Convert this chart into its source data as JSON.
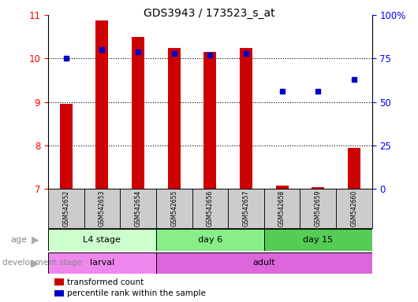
{
  "title": "GDS3943 / 173523_s_at",
  "samples": [
    "GSM542652",
    "GSM542653",
    "GSM542654",
    "GSM542655",
    "GSM542656",
    "GSM542657",
    "GSM542658",
    "GSM542659",
    "GSM542660"
  ],
  "transformed_count": [
    8.95,
    10.88,
    10.5,
    10.25,
    10.15,
    10.25,
    7.07,
    7.03,
    7.95
  ],
  "percentile_rank": [
    75,
    80,
    79,
    78,
    77,
    78,
    56,
    56,
    63
  ],
  "ylim_left": [
    7,
    11
  ],
  "ylim_right": [
    0,
    100
  ],
  "yticks_left": [
    7,
    8,
    9,
    10,
    11
  ],
  "yticks_right": [
    0,
    25,
    50,
    75,
    100
  ],
  "ytick_right_labels": [
    "0",
    "25",
    "50",
    "75",
    "100%"
  ],
  "bar_color": "#cc0000",
  "dot_color": "#0000cc",
  "bar_bottom": 7,
  "age_groups": [
    {
      "label": "L4 stage",
      "start": 0,
      "end": 3,
      "color": "#ccffcc"
    },
    {
      "label": "day 6",
      "start": 3,
      "end": 6,
      "color": "#88ee88"
    },
    {
      "label": "day 15",
      "start": 6,
      "end": 9,
      "color": "#55cc55"
    }
  ],
  "dev_groups": [
    {
      "label": "larval",
      "start": 0,
      "end": 3,
      "color": "#ee88ee"
    },
    {
      "label": "adult",
      "start": 3,
      "end": 9,
      "color": "#dd66dd"
    }
  ],
  "legend_items": [
    {
      "color": "#cc0000",
      "label": "transformed count"
    },
    {
      "color": "#0000cc",
      "label": "percentile rank within the sample"
    }
  ],
  "age_label": "age",
  "dev_label": "development stage",
  "xticklabel_bg": "#cccccc",
  "title_fontsize": 10
}
